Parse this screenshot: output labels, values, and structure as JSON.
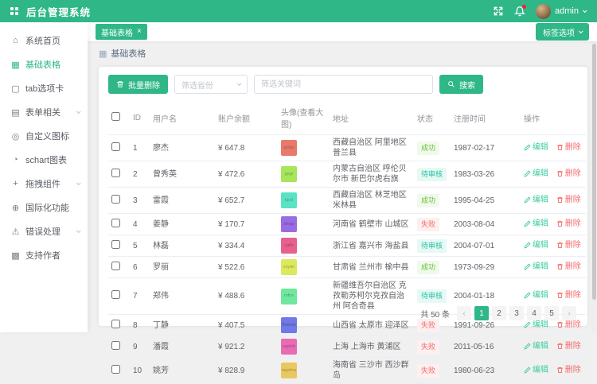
{
  "app": {
    "title": "后台管理系统",
    "primary_color": "#2fb788"
  },
  "header": {
    "user_name": "admin"
  },
  "icons": {
    "home": "⌂",
    "basic-table": "▦",
    "tabs": "▢",
    "forms": "▤",
    "custom-icon": "◎",
    "schart": "◔",
    "drag": "+",
    "i18n": "⊕",
    "error": "⚠",
    "donate": "▩",
    "breadcrumb_table": "▦"
  },
  "sidebar": {
    "items": [
      {
        "key": "home",
        "label": "系统首页",
        "icon": "home",
        "active": false,
        "expandable": false
      },
      {
        "key": "basic-table",
        "label": "基础表格",
        "icon": "basic-table",
        "active": true,
        "expandable": false
      },
      {
        "key": "tabs",
        "label": "tab选项卡",
        "icon": "tabs",
        "active": false,
        "expandable": false
      },
      {
        "key": "forms",
        "label": "表单相关",
        "icon": "forms",
        "active": false,
        "expandable": true
      },
      {
        "key": "custom-icon",
        "label": "自定义图标",
        "icon": "custom-icon",
        "active": false,
        "expandable": false
      },
      {
        "key": "schart",
        "label": "schart图表",
        "icon": "schart",
        "active": false,
        "expandable": false
      },
      {
        "key": "drag",
        "label": "拖拽组件",
        "icon": "drag",
        "active": false,
        "expandable": true
      },
      {
        "key": "i18n",
        "label": "国际化功能",
        "icon": "i18n",
        "active": false,
        "expandable": false
      },
      {
        "key": "error",
        "label": "错误处理",
        "icon": "error",
        "active": false,
        "expandable": true
      },
      {
        "key": "donate",
        "label": "支持作者",
        "icon": "donate",
        "active": false,
        "expandable": false
      }
    ]
  },
  "tabbar": {
    "tab_label": "基础表格",
    "tab_close": "×",
    "options_label": "标签选项"
  },
  "breadcrumb": {
    "label": "基础表格"
  },
  "toolbar": {
    "batch_delete_label": "批量删除",
    "province_placeholder": "筛选省份",
    "keyword_placeholder": "筛选关键词",
    "search_label": "搜索"
  },
  "table": {
    "headers": [
      "ID",
      "用户名",
      "账户余额",
      "头像(查看大图)",
      "地址",
      "状态",
      "注册时间",
      "操作"
    ],
    "edit_label": "编辑",
    "delete_label": "删除",
    "status_styles": {
      "成功": {
        "color": "#67c23a",
        "bg": "#f0f9eb"
      },
      "待审核": {
        "color": "#26c2a3",
        "bg": "#e7f9f4"
      },
      "失败": {
        "color": "#f56c6c",
        "bg": "#fef0f0"
      }
    },
    "rows": [
      {
        "id": 1,
        "name": "廖杰",
        "balance": "¥ 647.8",
        "avatar_text": "ectbx",
        "avatar_color": "#e9796a",
        "address": "西藏自治区 阿里地区 普兰县",
        "status": "成功",
        "date": "1987-02-17"
      },
      {
        "id": 2,
        "name": "曾秀英",
        "balance": "¥ 472.6",
        "avatar_text": "gxgr",
        "avatar_color": "#a6e55c",
        "address": "内蒙古自治区 呼伦贝尔市 新巴尔虎右旗",
        "status": "待审核",
        "date": "1983-03-26"
      },
      {
        "id": 3,
        "name": "雷霞",
        "balance": "¥ 652.7",
        "avatar_text": "kjcd",
        "avatar_color": "#59e3c2",
        "address": "西藏自治区 林芝地区 米林县",
        "status": "成功",
        "date": "1995-04-25"
      },
      {
        "id": 4,
        "name": "姜静",
        "balance": "¥ 170.7",
        "avatar_text": "afeap",
        "avatar_color": "#9a6ce4",
        "address": "河南省 鹤壁市 山城区",
        "status": "失败",
        "date": "2003-08-04"
      },
      {
        "id": 5,
        "name": "林磊",
        "balance": "¥ 334.4",
        "avatar_text": "cgffs",
        "avatar_color": "#e8618c",
        "address": "浙江省 嘉兴市 海盐县",
        "status": "待审核",
        "date": "2004-07-01"
      },
      {
        "id": 6,
        "name": "罗丽",
        "balance": "¥ 522.6",
        "avatar_text": "xsydn",
        "avatar_color": "#dce95e",
        "address": "甘肃省 兰州市 榆中县",
        "status": "成功",
        "date": "1973-09-29"
      },
      {
        "id": 7,
        "name": "郑伟",
        "balance": "¥ 488.6",
        "avatar_text": "mfnx",
        "avatar_color": "#6fe79c",
        "address": "新疆维吾尔自治区 克孜勒苏柯尔克孜自治州 阿合奇县",
        "status": "待审核",
        "date": "2004-01-18"
      },
      {
        "id": 8,
        "name": "丁静",
        "balance": "¥ 407.5",
        "avatar_text": "ffwbwb",
        "avatar_color": "#7179e8",
        "address": "山西省 太原市 迎泽区",
        "status": "失败",
        "date": "1991-09-26"
      },
      {
        "id": 9,
        "name": "潘霞",
        "balance": "¥ 921.2",
        "avatar_text": "wgdvb",
        "avatar_color": "#e96bb4",
        "address": "上海 上海市 黄浦区",
        "status": "失败",
        "date": "2011-05-16"
      },
      {
        "id": 10,
        "name": "姚芳",
        "balance": "¥ 828.9",
        "avatar_text": "mgsfcw",
        "avatar_color": "#e9c95f",
        "address": "海南省 三沙市 西沙群岛",
        "status": "失败",
        "date": "1980-06-23"
      }
    ]
  },
  "pagination": {
    "total_label": "共 50 条",
    "prev": "‹",
    "next": "›",
    "pages": [
      "1",
      "2",
      "3",
      "4",
      "5"
    ],
    "active_page": "1"
  }
}
